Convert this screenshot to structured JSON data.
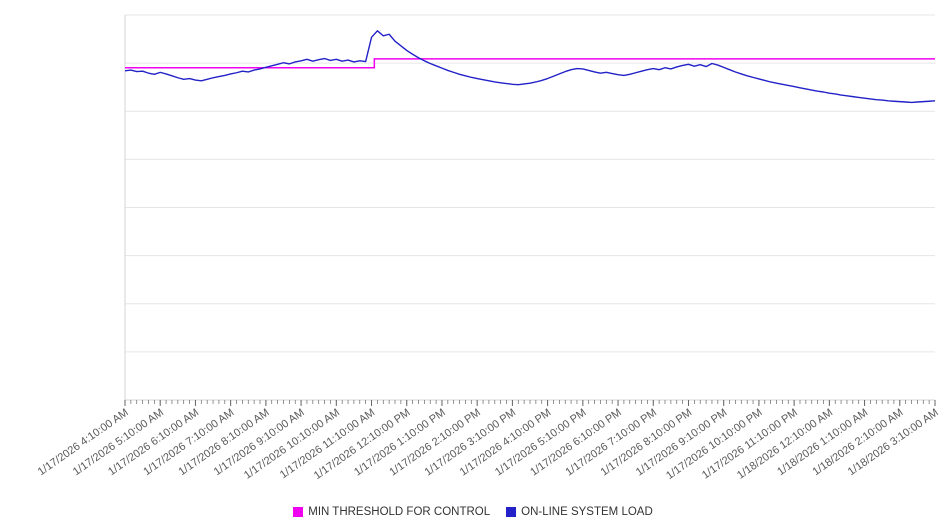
{
  "chart_data": {
    "type": "line",
    "title": "",
    "xlabel": "",
    "ylabel": "",
    "y_axis": {
      "tick_labels_visible": false,
      "gridline_divisions": 8,
      "normalized_range": [
        0,
        100
      ]
    },
    "x_axis": {
      "start": "1/17/2026 4:10:00 AM",
      "end": "1/18/2026 3:10:00 AM",
      "label_interval_hours": 1,
      "minor_tick_interval_minutes": 10,
      "tick_labels": [
        "1/17/2026 4:10:00 AM",
        "1/17/2026 5:10:00 AM",
        "1/17/2026 6:10:00 AM",
        "1/17/2026 7:10:00 AM",
        "1/17/2026 8:10:00 AM",
        "1/17/2026 9:10:00 AM",
        "1/17/2026 10:10:00 AM",
        "1/17/2026 11:10:00 AM",
        "1/17/2026 12:10:00 PM",
        "1/17/2026 1:10:00 PM",
        "1/17/2026 2:10:00 PM",
        "1/17/2026 3:10:00 PM",
        "1/17/2026 4:10:00 PM",
        "1/17/2026 5:10:00 PM",
        "1/17/2026 6:10:00 PM",
        "1/17/2026 7:10:00 PM",
        "1/17/2026 8:10:00 PM",
        "1/17/2026 9:10:00 PM",
        "1/17/2026 10:10:00 PM",
        "1/17/2026 11:10:00 PM",
        "1/18/2026 12:10:00 AM",
        "1/18/2026 1:10:00 AM",
        "1/18/2026 2:10:00 AM",
        "1/18/2026 3:10:00 AM"
      ]
    },
    "series": [
      {
        "name": "MIN THRESHOLD FOR CONTROL",
        "color": "#f000f0",
        "style": "step",
        "segments": [
          {
            "from_hour": 0.0,
            "to_hour": 7.08,
            "value": 86.3
          },
          {
            "from_hour": 7.08,
            "to_hour": 23.0,
            "value": 88.6
          }
        ]
      },
      {
        "name": "ON-LINE SYSTEM LOAD",
        "color": "#2222c8",
        "style": "line",
        "sample_interval_minutes": 10,
        "start_hour": 0,
        "values": [
          85.5,
          85.7,
          85.3,
          85.4,
          84.9,
          84.6,
          85.1,
          84.7,
          84.2,
          83.7,
          83.3,
          83.5,
          83.1,
          82.9,
          83.3,
          83.7,
          84.0,
          84.3,
          84.7,
          85.0,
          85.4,
          85.2,
          85.7,
          86.0,
          86.4,
          86.8,
          87.2,
          87.6,
          87.3,
          87.8,
          88.1,
          88.5,
          88.0,
          88.4,
          88.7,
          88.2,
          88.5,
          88.0,
          88.3,
          87.8,
          88.1,
          87.9,
          94.2,
          95.9,
          94.6,
          95.0,
          93.2,
          92.0,
          90.8,
          89.8,
          88.9,
          88.1,
          87.4,
          86.8,
          86.2,
          85.6,
          85.1,
          84.6,
          84.2,
          83.8,
          83.5,
          83.2,
          82.9,
          82.6,
          82.4,
          82.2,
          82.0,
          81.9,
          82.1,
          82.3,
          82.6,
          83.0,
          83.5,
          84.1,
          84.7,
          85.3,
          85.8,
          86.1,
          86.0,
          85.6,
          85.2,
          84.9,
          85.1,
          84.8,
          84.5,
          84.3,
          84.6,
          85.0,
          85.4,
          85.8,
          86.1,
          85.8,
          86.3,
          86.0,
          86.5,
          86.9,
          87.2,
          86.7,
          87.1,
          86.6,
          87.4,
          87.0,
          86.4,
          85.8,
          85.2,
          84.7,
          84.2,
          83.8,
          83.4,
          83.0,
          82.6,
          82.3,
          82.0,
          81.7,
          81.4,
          81.1,
          80.8,
          80.5,
          80.2,
          80.0,
          79.7,
          79.5,
          79.2,
          79.0,
          78.8,
          78.6,
          78.4,
          78.2,
          78.0,
          77.9,
          77.7,
          77.6,
          77.5,
          77.4,
          77.3,
          77.4,
          77.5,
          77.6,
          77.7
        ]
      }
    ],
    "legend": {
      "position": "bottom",
      "items": [
        {
          "label": "MIN THRESHOLD FOR CONTROL",
          "color": "#f000f0"
        },
        {
          "label": "ON-LINE SYSTEM LOAD",
          "color": "#2222c8"
        }
      ]
    },
    "colors": {
      "gridline": "#e6e6e6",
      "axis": "#d4d4d4",
      "tick": "#666666",
      "tick_label": "#595959"
    }
  }
}
